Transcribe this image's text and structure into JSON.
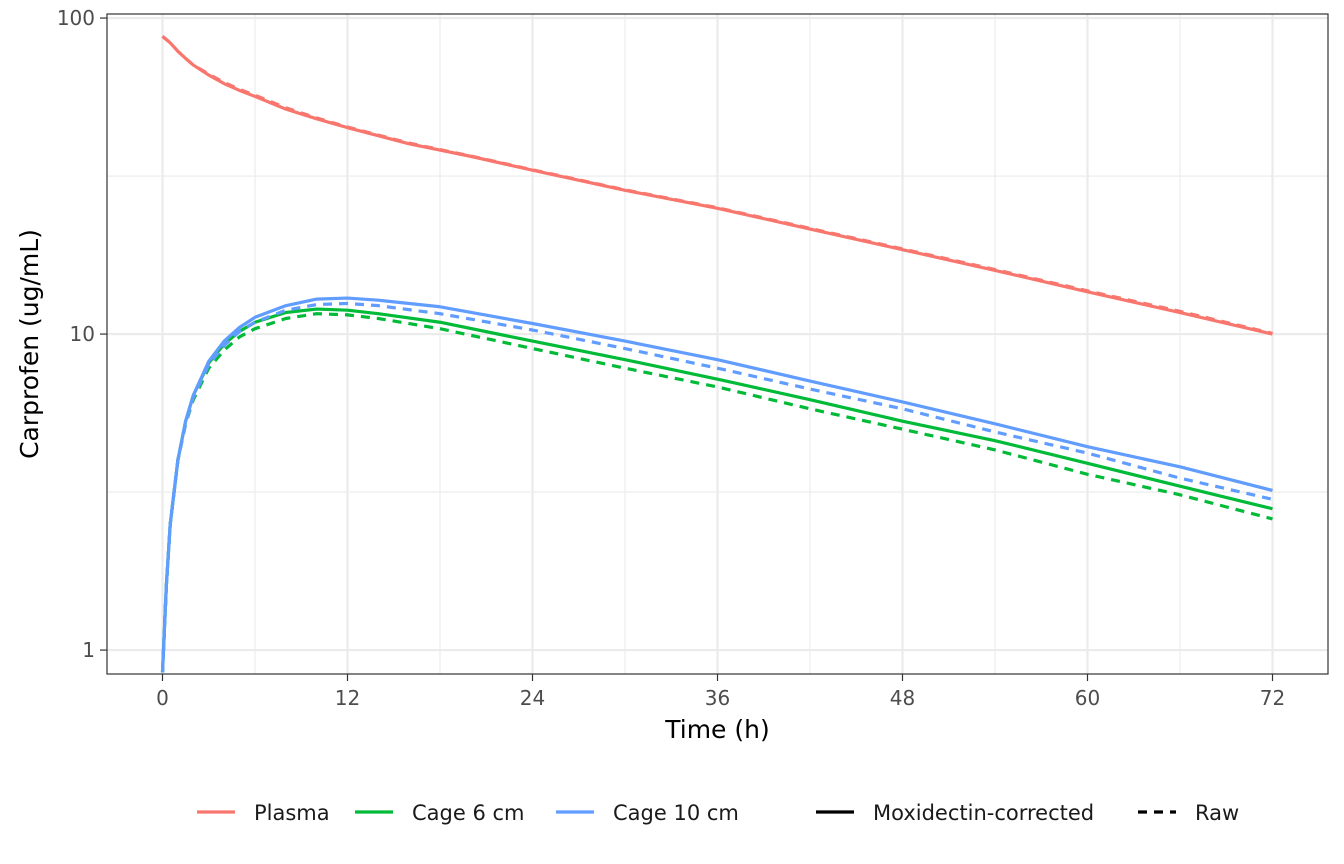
{
  "chart_data": {
    "type": "line",
    "title": "",
    "xlabel": "Time (h)",
    "ylabel": "Carprofen (ug/mL)",
    "x_ticks": [
      0,
      12,
      24,
      36,
      48,
      60,
      72
    ],
    "x_tick_labels": [
      "0",
      "12",
      "24",
      "36",
      "48",
      "60",
      "72"
    ],
    "y_ticks": [
      1,
      10,
      100
    ],
    "y_tick_labels": [
      "1",
      "10",
      "100"
    ],
    "xlim": [
      -3.6,
      75.6
    ],
    "ylim": [
      0.84,
      103
    ],
    "y_scale": "log10",
    "grid": true,
    "legend_position": "bottom",
    "series": [
      {
        "name": "Plasma",
        "color": "#F8766D",
        "linetype": "solid",
        "x": [
          0,
          0.5,
          1,
          1.5,
          2,
          3,
          4,
          5,
          6,
          8,
          10,
          12,
          16,
          20,
          24,
          30,
          36,
          42,
          48,
          54,
          60,
          66,
          72
        ],
        "values": [
          87.5,
          83.5,
          78.5,
          74.5,
          71,
          66,
          62,
          59,
          56.5,
          51.5,
          48,
          45,
          40,
          36.5,
          33,
          28.5,
          25,
          21.5,
          18.5,
          15.9,
          13.6,
          11.7,
          10.0
        ]
      },
      {
        "name": "Plasma",
        "color": "#F8766D",
        "linetype": "dashed",
        "x": [
          0,
          0.5,
          1,
          1.5,
          2,
          3,
          4,
          5,
          6,
          8,
          10,
          12,
          16,
          20,
          24,
          30,
          36,
          42,
          48,
          54,
          60,
          66,
          72
        ],
        "values": [
          87.5,
          83.5,
          78.5,
          74.5,
          71,
          66.5,
          62.5,
          59.5,
          57,
          52,
          48.3,
          45.2,
          40.2,
          36.6,
          33.1,
          28.6,
          25.1,
          21.6,
          18.6,
          16.0,
          13.7,
          11.8,
          10.05
        ]
      },
      {
        "name": "Cage 6 cm",
        "color": "#00BA38",
        "linetype": "solid",
        "x": [
          0,
          0.25,
          0.5,
          1,
          1.5,
          2,
          3,
          4,
          5,
          6,
          8,
          10,
          12,
          14,
          18,
          24,
          30,
          36,
          42,
          48,
          54,
          60,
          66,
          72
        ],
        "values": [
          0.85,
          1.6,
          2.5,
          4.0,
          5.3,
          6.4,
          8.1,
          9.3,
          10.2,
          10.9,
          11.7,
          12.0,
          11.9,
          11.6,
          10.9,
          9.5,
          8.3,
          7.2,
          6.2,
          5.3,
          4.6,
          3.9,
          3.3,
          2.8
        ]
      },
      {
        "name": "Cage 6 cm",
        "color": "#00BA38",
        "linetype": "dashed",
        "x": [
          0,
          0.25,
          0.5,
          1,
          1.5,
          2,
          3,
          4,
          5,
          6,
          8,
          10,
          12,
          14,
          18,
          24,
          30,
          36,
          42,
          48,
          54,
          60,
          66,
          72
        ],
        "values": [
          0.85,
          1.6,
          2.5,
          4.0,
          5.2,
          6.2,
          7.8,
          8.9,
          9.8,
          10.4,
          11.2,
          11.6,
          11.5,
          11.2,
          10.4,
          9.0,
          7.8,
          6.8,
          5.8,
          5.0,
          4.3,
          3.6,
          3.1,
          2.6
        ]
      },
      {
        "name": "Cage 10 cm",
        "color": "#619CFF",
        "linetype": "solid",
        "x": [
          0,
          0.25,
          0.5,
          1,
          1.5,
          2,
          3,
          4,
          5,
          6,
          8,
          10,
          12,
          14,
          18,
          24,
          30,
          36,
          42,
          48,
          54,
          60,
          66,
          72
        ],
        "values": [
          0.85,
          1.6,
          2.5,
          4.0,
          5.3,
          6.4,
          8.2,
          9.5,
          10.5,
          11.3,
          12.3,
          12.9,
          13.0,
          12.8,
          12.2,
          10.8,
          9.5,
          8.3,
          7.1,
          6.1,
          5.2,
          4.4,
          3.8,
          3.2
        ]
      },
      {
        "name": "Cage 10 cm",
        "color": "#619CFF",
        "linetype": "dashed",
        "x": [
          0,
          0.25,
          0.5,
          1,
          1.5,
          2,
          3,
          4,
          5,
          6,
          8,
          10,
          12,
          14,
          18,
          24,
          30,
          36,
          42,
          48,
          54,
          60,
          66,
          72
        ],
        "values": [
          0.85,
          1.6,
          2.5,
          4.0,
          5.2,
          6.3,
          8.0,
          9.2,
          10.2,
          10.9,
          11.9,
          12.4,
          12.5,
          12.3,
          11.6,
          10.3,
          9.0,
          7.8,
          6.7,
          5.8,
          4.9,
          4.2,
          3.5,
          3.0
        ]
      }
    ],
    "legend": {
      "items": [
        {
          "label": "Plasma",
          "color": "#F8766D",
          "linetype": "solid"
        },
        {
          "label": "Cage 6 cm",
          "color": "#00BA38",
          "linetype": "solid"
        },
        {
          "label": "Cage 10 cm",
          "color": "#619CFF",
          "linetype": "solid"
        },
        {
          "label": "Moxidectin-corrected",
          "color": "#000000",
          "linetype": "solid"
        },
        {
          "label": "Raw",
          "color": "#000000",
          "linetype": "dashed"
        }
      ]
    }
  }
}
